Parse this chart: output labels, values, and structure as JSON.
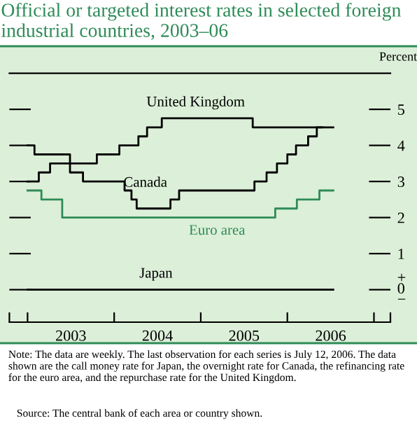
{
  "chart_data": {
    "type": "step",
    "title": "Official or targeted interest rates in selected foreign industrial countries, 2003–06",
    "ylabel": "Percent",
    "xlim": [
      2002.79,
      2007.19
    ],
    "xticks": [
      {
        "value": 2002.79,
        "label": null
      },
      {
        "value": 2003,
        "label": null
      },
      {
        "value": 2003.5,
        "label": "2003"
      },
      {
        "value": 2004,
        "label": null
      },
      {
        "value": 2004.5,
        "label": "2004"
      },
      {
        "value": 2005,
        "label": null
      },
      {
        "value": 2005.5,
        "label": "2005"
      },
      {
        "value": 2006,
        "label": null
      },
      {
        "value": 2006.5,
        "label": "2006"
      },
      {
        "value": 2007,
        "label": null
      },
      {
        "value": 2007.19,
        "label": null
      }
    ],
    "ylim": [
      -0.9,
      6
    ],
    "yticks": [
      {
        "value": 0,
        "label": "+\n0\n−"
      },
      1,
      2,
      3,
      4,
      5
    ],
    "grid": false,
    "series": [
      {
        "name": "United Kingdom",
        "color": "#000000",
        "x": [
          2003.0,
          2003.08,
          2003.49,
          2003.8,
          2004.06,
          2004.28,
          2004.38,
          2004.55,
          2005.6,
          2006.53
        ],
        "values": [
          4.0,
          3.75,
          3.5,
          3.75,
          4.0,
          4.25,
          4.5,
          4.75,
          4.5,
          4.5
        ]
      },
      {
        "name": "Canada",
        "color": "#000000",
        "x": [
          2003.0,
          2003.13,
          2003.26,
          2003.49,
          2003.64,
          2004.12,
          2004.2,
          2004.26,
          2004.65,
          2004.75,
          2005.62,
          2005.76,
          2005.88,
          2006.0,
          2006.1,
          2006.24,
          2006.34,
          2006.4
        ],
        "values": [
          3.0,
          3.25,
          3.5,
          3.25,
          3.0,
          2.75,
          2.5,
          2.25,
          2.5,
          2.75,
          3.0,
          3.25,
          3.5,
          3.75,
          4.0,
          4.25,
          4.5,
          4.5
        ]
      },
      {
        "name": "Euro area",
        "color": "#2e8b57",
        "x": [
          2003.0,
          2003.16,
          2003.4,
          2005.86,
          2006.11,
          2006.37,
          2006.53
        ],
        "values": [
          2.75,
          2.5,
          2.0,
          2.25,
          2.5,
          2.75,
          2.75
        ]
      },
      {
        "name": "Japan",
        "color": "#000000",
        "x": [
          2003.0,
          2006.53
        ],
        "values": [
          0,
          0
        ]
      }
    ],
    "annotations": [
      "Note: The data are weekly. The last observation for each series is July 12, 2006. The data shown are the call money rate for Japan, the overnight rate for Canada, the refinancing rate for the euro area, and the repurchase rate for the United Kingdom.",
      "Source: The central bank of each area or country shown."
    ]
  }
}
